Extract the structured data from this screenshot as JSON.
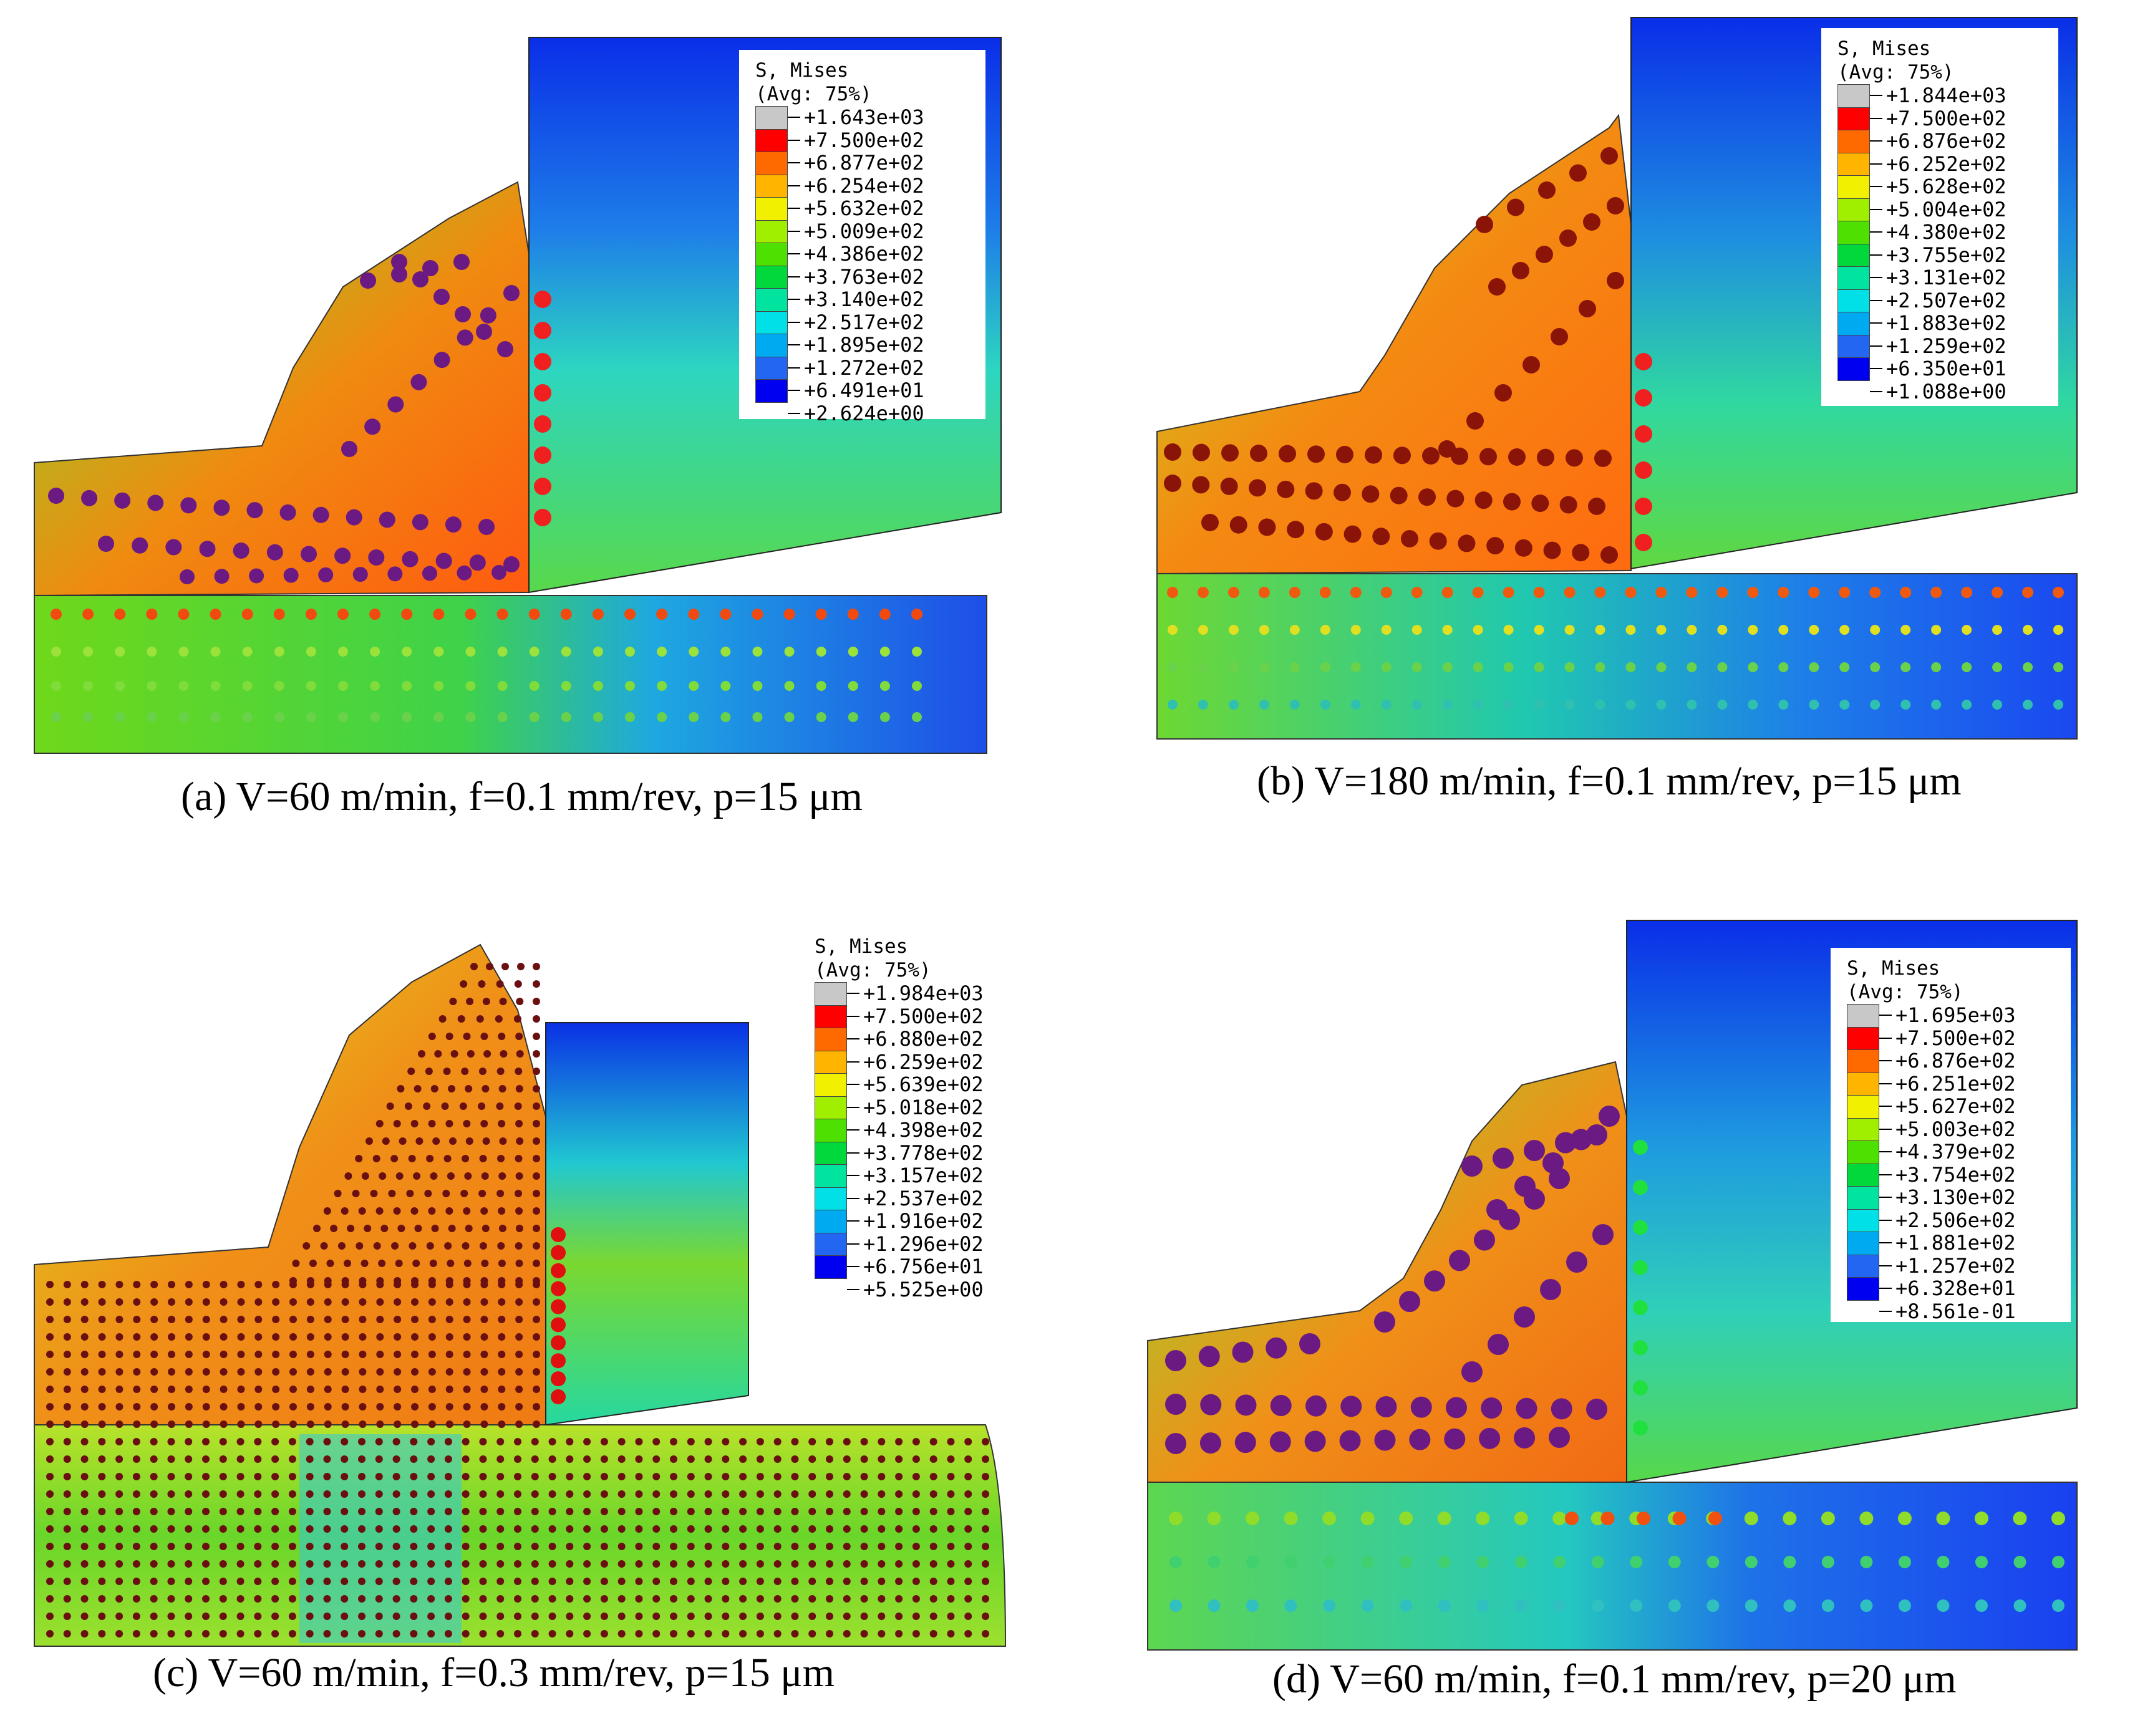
{
  "colormap": [
    "#c8c8c8",
    "#ff0000",
    "#ff6a00",
    "#ffb400",
    "#f0f000",
    "#a0ee00",
    "#4ee000",
    "#00d83c",
    "#00e4a0",
    "#00e0e6",
    "#00aaf0",
    "#2266f2",
    "#0000f0"
  ],
  "panels": [
    {
      "id": "a",
      "caption": "(a) V=60 m/min, f=0.1 mm/rev, p=15 μm",
      "legend": {
        "title": "S, Mises",
        "avg": "(Avg: 75%)",
        "values": [
          "+1.643e+03",
          "+7.500e+02",
          "+6.877e+02",
          "+6.254e+02",
          "+5.632e+02",
          "+5.009e+02",
          "+4.386e+02",
          "+3.763e+02",
          "+3.140e+02",
          "+2.517e+02",
          "+1.895e+02",
          "+1.272e+02",
          "+6.491e+01",
          "+2.624e+00"
        ]
      }
    },
    {
      "id": "b",
      "caption": "(b) V=180 m/min, f=0.1 mm/rev, p=15 μm",
      "legend": {
        "title": "S, Mises",
        "avg": "(Avg: 75%)",
        "values": [
          "+1.844e+03",
          "+7.500e+02",
          "+6.876e+02",
          "+6.252e+02",
          "+5.628e+02",
          "+5.004e+02",
          "+4.380e+02",
          "+3.755e+02",
          "+3.131e+02",
          "+2.507e+02",
          "+1.883e+02",
          "+1.259e+02",
          "+6.350e+01",
          "+1.088e+00"
        ]
      }
    },
    {
      "id": "c",
      "caption": "(c) V=60 m/min, f=0.3 mm/rev, p=15 μm",
      "legend": {
        "title": "S, Mises",
        "avg": "(Avg: 75%)",
        "values": [
          "+1.984e+03",
          "+7.500e+02",
          "+6.880e+02",
          "+6.259e+02",
          "+5.639e+02",
          "+5.018e+02",
          "+4.398e+02",
          "+3.778e+02",
          "+3.157e+02",
          "+2.537e+02",
          "+1.916e+02",
          "+1.296e+02",
          "+6.756e+01",
          "+5.525e+00"
        ]
      }
    },
    {
      "id": "d",
      "caption": "(d) V=60 m/min, f=0.1 mm/rev, p=20 μm",
      "legend": {
        "title": "S, Mises",
        "avg": "(Avg: 75%)",
        "values": [
          "+1.695e+03",
          "+7.500e+02",
          "+6.876e+02",
          "+6.251e+02",
          "+5.627e+02",
          "+5.003e+02",
          "+4.379e+02",
          "+3.754e+02",
          "+3.130e+02",
          "+2.506e+02",
          "+1.881e+02",
          "+1.257e+02",
          "+6.328e+01",
          "+8.561e-01"
        ]
      }
    }
  ]
}
